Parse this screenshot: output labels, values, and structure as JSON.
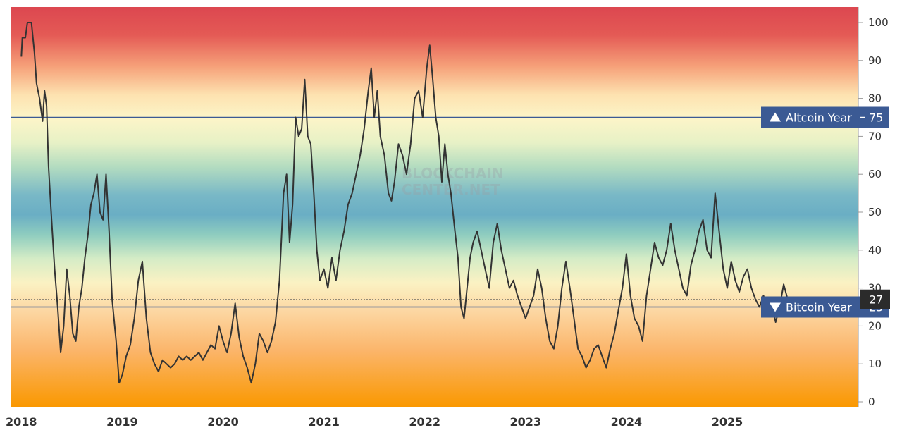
{
  "watermark": [
    "BLOCKCHAIN",
    "CENTER.NET"
  ],
  "colors": {
    "line": "#333333",
    "threshold": "#3b5a94",
    "label_bg": "#3b5a94",
    "current_bg": "#2b2b2b"
  },
  "chart_data": {
    "type": "line",
    "title": "",
    "xlabel": "",
    "ylabel": "",
    "ylim": [
      0,
      100
    ],
    "y_ticks": [
      "0",
      "10",
      "20",
      "30",
      "40",
      "50",
      "60",
      "70",
      "80",
      "90",
      "100"
    ],
    "x_ticks": [
      "2018",
      "2019",
      "2020",
      "2021",
      "2022",
      "2023",
      "2024",
      "2025"
    ],
    "x_range": [
      2017.9,
      2026.3
    ],
    "background": "vertical gradient: red (100) - orange - pale yellow (75) - green - blue (50) - green - yellow - orange (0)",
    "thresholds": [
      {
        "name": "Altcoin Year",
        "value": 75,
        "direction": "up"
      },
      {
        "name": "Bitcoin Year",
        "value": 25,
        "direction": "down"
      }
    ],
    "current_value": 27,
    "series": [
      {
        "name": "",
        "points": [
          [
            2018.0,
            91
          ],
          [
            2018.01,
            96
          ],
          [
            2018.04,
            96
          ],
          [
            2018.06,
            100
          ],
          [
            2018.1,
            100
          ],
          [
            2018.13,
            92
          ],
          [
            2018.15,
            84
          ],
          [
            2018.18,
            80
          ],
          [
            2018.21,
            74
          ],
          [
            2018.23,
            82
          ],
          [
            2018.25,
            78
          ],
          [
            2018.27,
            62
          ],
          [
            2018.3,
            48
          ],
          [
            2018.33,
            35
          ],
          [
            2018.36,
            25
          ],
          [
            2018.39,
            13
          ],
          [
            2018.42,
            20
          ],
          [
            2018.45,
            35
          ],
          [
            2018.48,
            28
          ],
          [
            2018.51,
            18
          ],
          [
            2018.54,
            16
          ],
          [
            2018.57,
            25
          ],
          [
            2018.6,
            30
          ],
          [
            2018.63,
            38
          ],
          [
            2018.66,
            44
          ],
          [
            2018.69,
            52
          ],
          [
            2018.72,
            55
          ],
          [
            2018.75,
            60
          ],
          [
            2018.78,
            50
          ],
          [
            2018.81,
            48
          ],
          [
            2018.84,
            60
          ],
          [
            2018.87,
            45
          ],
          [
            2018.9,
            27
          ],
          [
            2018.94,
            16
          ],
          [
            2018.97,
            5
          ],
          [
            2019.0,
            7
          ],
          [
            2019.04,
            12
          ],
          [
            2019.08,
            15
          ],
          [
            2019.12,
            22
          ],
          [
            2019.16,
            32
          ],
          [
            2019.2,
            37
          ],
          [
            2019.24,
            22
          ],
          [
            2019.28,
            13
          ],
          [
            2019.32,
            10
          ],
          [
            2019.36,
            8
          ],
          [
            2019.4,
            11
          ],
          [
            2019.44,
            10
          ],
          [
            2019.48,
            9
          ],
          [
            2019.52,
            10
          ],
          [
            2019.56,
            12
          ],
          [
            2019.6,
            11
          ],
          [
            2019.64,
            12
          ],
          [
            2019.68,
            11
          ],
          [
            2019.72,
            12
          ],
          [
            2019.76,
            13
          ],
          [
            2019.8,
            11
          ],
          [
            2019.84,
            13
          ],
          [
            2019.88,
            15
          ],
          [
            2019.92,
            14
          ],
          [
            2019.96,
            20
          ],
          [
            2020.0,
            16
          ],
          [
            2020.04,
            13
          ],
          [
            2020.08,
            18
          ],
          [
            2020.12,
            26
          ],
          [
            2020.16,
            17
          ],
          [
            2020.2,
            12
          ],
          [
            2020.24,
            9
          ],
          [
            2020.28,
            5
          ],
          [
            2020.32,
            10
          ],
          [
            2020.36,
            18
          ],
          [
            2020.4,
            16
          ],
          [
            2020.44,
            13
          ],
          [
            2020.48,
            16
          ],
          [
            2020.52,
            21
          ],
          [
            2020.56,
            32
          ],
          [
            2020.6,
            55
          ],
          [
            2020.63,
            60
          ],
          [
            2020.66,
            42
          ],
          [
            2020.69,
            52
          ],
          [
            2020.72,
            75
          ],
          [
            2020.75,
            70
          ],
          [
            2020.78,
            72
          ],
          [
            2020.81,
            85
          ],
          [
            2020.84,
            70
          ],
          [
            2020.87,
            68
          ],
          [
            2020.9,
            55
          ],
          [
            2020.93,
            40
          ],
          [
            2020.96,
            32
          ],
          [
            2021.0,
            35
          ],
          [
            2021.04,
            30
          ],
          [
            2021.08,
            38
          ],
          [
            2021.12,
            32
          ],
          [
            2021.16,
            40
          ],
          [
            2021.2,
            45
          ],
          [
            2021.24,
            52
          ],
          [
            2021.28,
            55
          ],
          [
            2021.32,
            60
          ],
          [
            2021.36,
            65
          ],
          [
            2021.4,
            72
          ],
          [
            2021.44,
            82
          ],
          [
            2021.47,
            88
          ],
          [
            2021.5,
            75
          ],
          [
            2021.53,
            82
          ],
          [
            2021.56,
            70
          ],
          [
            2021.6,
            65
          ],
          [
            2021.64,
            55
          ],
          [
            2021.67,
            53
          ],
          [
            2021.7,
            58
          ],
          [
            2021.74,
            68
          ],
          [
            2021.78,
            65
          ],
          [
            2021.82,
            60
          ],
          [
            2021.86,
            68
          ],
          [
            2021.9,
            80
          ],
          [
            2021.94,
            82
          ],
          [
            2021.98,
            75
          ],
          [
            2022.02,
            88
          ],
          [
            2022.05,
            94
          ],
          [
            2022.08,
            85
          ],
          [
            2022.11,
            75
          ],
          [
            2022.14,
            70
          ],
          [
            2022.17,
            58
          ],
          [
            2022.2,
            68
          ],
          [
            2022.23,
            60
          ],
          [
            2022.26,
            55
          ],
          [
            2022.3,
            45
          ],
          [
            2022.33,
            38
          ],
          [
            2022.36,
            25
          ],
          [
            2022.39,
            22
          ],
          [
            2022.42,
            30
          ],
          [
            2022.45,
            38
          ],
          [
            2022.48,
            42
          ],
          [
            2022.52,
            45
          ],
          [
            2022.56,
            40
          ],
          [
            2022.6,
            35
          ],
          [
            2022.64,
            30
          ],
          [
            2022.68,
            42
          ],
          [
            2022.72,
            47
          ],
          [
            2022.76,
            40
          ],
          [
            2022.8,
            35
          ],
          [
            2022.84,
            30
          ],
          [
            2022.88,
            32
          ],
          [
            2022.92,
            28
          ],
          [
            2022.96,
            25
          ],
          [
            2023.0,
            22
          ],
          [
            2023.04,
            25
          ],
          [
            2023.08,
            28
          ],
          [
            2023.12,
            35
          ],
          [
            2023.16,
            30
          ],
          [
            2023.2,
            22
          ],
          [
            2023.24,
            16
          ],
          [
            2023.28,
            14
          ],
          [
            2023.32,
            20
          ],
          [
            2023.36,
            30
          ],
          [
            2023.4,
            37
          ],
          [
            2023.44,
            30
          ],
          [
            2023.48,
            22
          ],
          [
            2023.52,
            14
          ],
          [
            2023.56,
            12
          ],
          [
            2023.6,
            9
          ],
          [
            2023.64,
            11
          ],
          [
            2023.68,
            14
          ],
          [
            2023.72,
            15
          ],
          [
            2023.76,
            12
          ],
          [
            2023.8,
            9
          ],
          [
            2023.84,
            14
          ],
          [
            2023.88,
            18
          ],
          [
            2023.92,
            24
          ],
          [
            2023.96,
            30
          ],
          [
            2024.0,
            39
          ],
          [
            2024.04,
            28
          ],
          [
            2024.08,
            22
          ],
          [
            2024.12,
            20
          ],
          [
            2024.16,
            16
          ],
          [
            2024.2,
            28
          ],
          [
            2024.24,
            35
          ],
          [
            2024.28,
            42
          ],
          [
            2024.32,
            38
          ],
          [
            2024.36,
            36
          ],
          [
            2024.4,
            40
          ],
          [
            2024.44,
            47
          ],
          [
            2024.48,
            40
          ],
          [
            2024.52,
            35
          ],
          [
            2024.56,
            30
          ],
          [
            2024.6,
            28
          ],
          [
            2024.64,
            36
          ],
          [
            2024.68,
            40
          ],
          [
            2024.72,
            45
          ],
          [
            2024.76,
            48
          ],
          [
            2024.8,
            40
          ],
          [
            2024.84,
            38
          ],
          [
            2024.88,
            55
          ],
          [
            2024.92,
            45
          ],
          [
            2024.96,
            35
          ],
          [
            2025.0,
            30
          ],
          [
            2025.04,
            37
          ],
          [
            2025.08,
            32
          ],
          [
            2025.12,
            29
          ],
          [
            2025.16,
            33
          ],
          [
            2025.2,
            35
          ],
          [
            2025.24,
            30
          ],
          [
            2025.28,
            27
          ],
          [
            2025.32,
            25
          ],
          [
            2025.36,
            28
          ],
          [
            2025.4,
            24
          ],
          [
            2025.44,
            26
          ],
          [
            2025.48,
            21
          ],
          [
            2025.52,
            25
          ],
          [
            2025.56,
            31
          ],
          [
            2025.6,
            27
          ]
        ]
      }
    ]
  }
}
